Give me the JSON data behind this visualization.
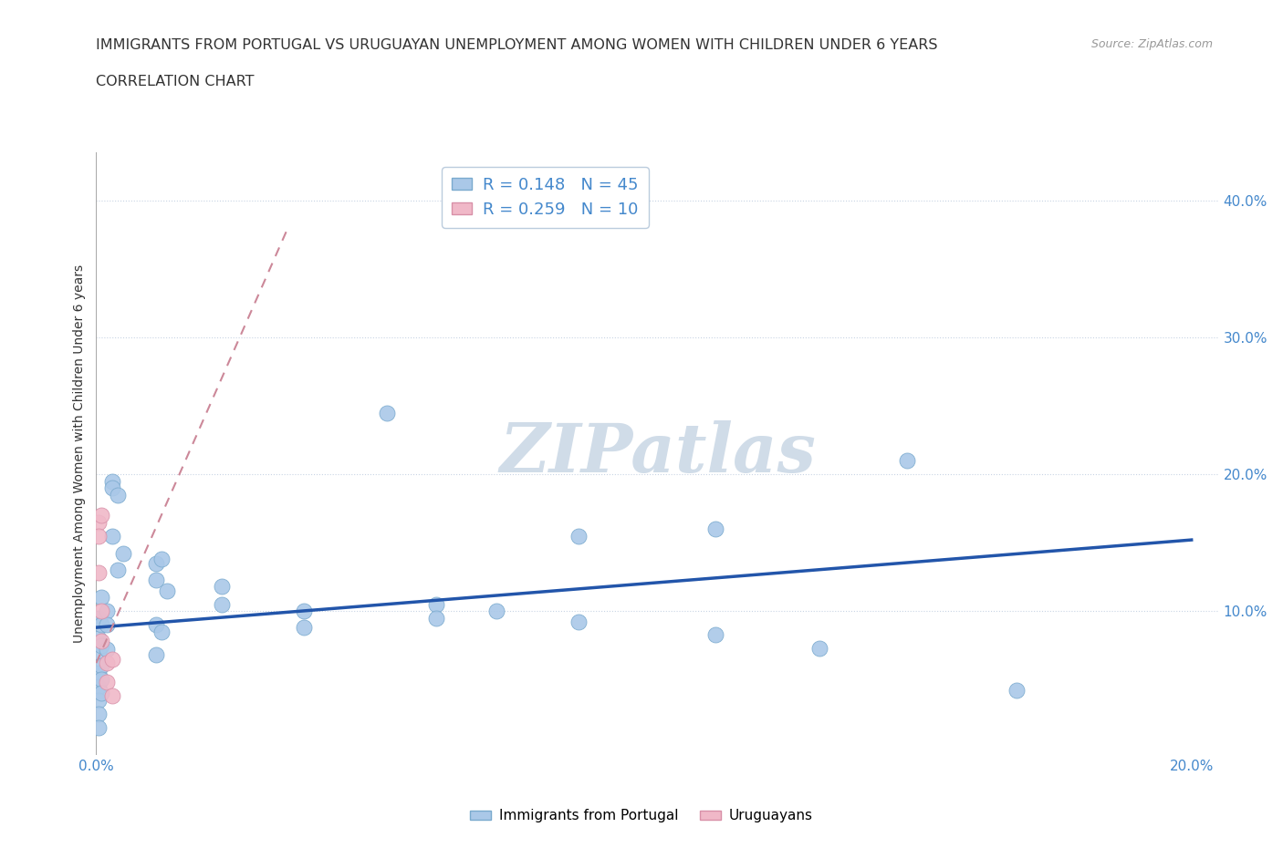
{
  "title_line1": "IMMIGRANTS FROM PORTUGAL VS URUGUAYAN UNEMPLOYMENT AMONG WOMEN WITH CHILDREN UNDER 6 YEARS",
  "title_line2": "CORRELATION CHART",
  "source": "Source: ZipAtlas.com",
  "ylabel": "Unemployment Among Women with Children Under 6 years",
  "xlim": [
    0.0,
    0.205
  ],
  "ylim": [
    -0.005,
    0.435
  ],
  "watermark": "ZIPatlas",
  "blue_scatter": [
    [
      0.0005,
      0.095
    ],
    [
      0.0005,
      0.08
    ],
    [
      0.0005,
      0.07
    ],
    [
      0.0005,
      0.055
    ],
    [
      0.0005,
      0.045
    ],
    [
      0.0005,
      0.035
    ],
    [
      0.0005,
      0.025
    ],
    [
      0.0005,
      0.015
    ],
    [
      0.001,
      0.11
    ],
    [
      0.001,
      0.09
    ],
    [
      0.001,
      0.075
    ],
    [
      0.001,
      0.06
    ],
    [
      0.001,
      0.05
    ],
    [
      0.001,
      0.04
    ],
    [
      0.002,
      0.1
    ],
    [
      0.002,
      0.09
    ],
    [
      0.002,
      0.072
    ],
    [
      0.003,
      0.195
    ],
    [
      0.003,
      0.19
    ],
    [
      0.003,
      0.155
    ],
    [
      0.004,
      0.185
    ],
    [
      0.004,
      0.13
    ],
    [
      0.005,
      0.142
    ],
    [
      0.011,
      0.135
    ],
    [
      0.011,
      0.123
    ],
    [
      0.011,
      0.09
    ],
    [
      0.011,
      0.068
    ],
    [
      0.012,
      0.138
    ],
    [
      0.012,
      0.085
    ],
    [
      0.013,
      0.115
    ],
    [
      0.023,
      0.118
    ],
    [
      0.023,
      0.105
    ],
    [
      0.038,
      0.1
    ],
    [
      0.038,
      0.088
    ],
    [
      0.053,
      0.245
    ],
    [
      0.062,
      0.105
    ],
    [
      0.062,
      0.095
    ],
    [
      0.073,
      0.1
    ],
    [
      0.088,
      0.155
    ],
    [
      0.088,
      0.092
    ],
    [
      0.113,
      0.16
    ],
    [
      0.113,
      0.083
    ],
    [
      0.132,
      0.073
    ],
    [
      0.148,
      0.21
    ],
    [
      0.168,
      0.042
    ]
  ],
  "pink_scatter": [
    [
      0.0005,
      0.165
    ],
    [
      0.0005,
      0.155
    ],
    [
      0.0005,
      0.128
    ],
    [
      0.001,
      0.17
    ],
    [
      0.001,
      0.1
    ],
    [
      0.001,
      0.078
    ],
    [
      0.002,
      0.062
    ],
    [
      0.002,
      0.048
    ],
    [
      0.003,
      0.065
    ],
    [
      0.003,
      0.038
    ]
  ],
  "blue_line_x": [
    0.0,
    0.2
  ],
  "blue_line_y": [
    0.088,
    0.152
  ],
  "pink_line_x": [
    0.0,
    0.035
  ],
  "pink_line_y": [
    0.062,
    0.38
  ],
  "blue_scatter_color": "#aac8e8",
  "blue_scatter_edge": "#7aaace",
  "pink_scatter_color": "#f0b8c8",
  "pink_scatter_edge": "#d890a8",
  "blue_line_color": "#2255aa",
  "pink_line_color": "#cc8899",
  "background_color": "#ffffff",
  "grid_color": "#c8d4e4",
  "title_color": "#333333",
  "axis_label_color": "#4488cc",
  "watermark_color": "#d0dce8",
  "legend_label1": "R = 0.148   N = 45",
  "legend_label2": "R = 0.259   N = 10",
  "bottom_label1": "Immigrants from Portugal",
  "bottom_label2": "Uruguayans"
}
